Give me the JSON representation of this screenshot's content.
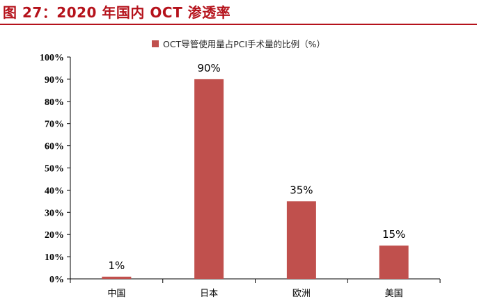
{
  "figure": {
    "title": "图 27：2020 年国内 OCT 渗透率"
  },
  "colors": {
    "title": "#b5121b",
    "bar": "#c0504d"
  },
  "chart_data": {
    "type": "bar",
    "categories": [
      "中国",
      "日本",
      "欧洲",
      "美国"
    ],
    "series": [
      {
        "name": "OCT导管使用量占PCI手术量的比例（%）",
        "values": [
          1,
          90,
          35,
          15
        ],
        "data_labels": [
          "1%",
          "90%",
          "35%",
          "15%"
        ]
      }
    ],
    "ylim": [
      0,
      100
    ],
    "yticks": [
      0,
      10,
      20,
      30,
      40,
      50,
      60,
      70,
      80,
      90,
      100
    ],
    "ytick_labels": [
      "0%",
      "10%",
      "20%",
      "30%",
      "40%",
      "50%",
      "60%",
      "70%",
      "80%",
      "90%",
      "100%"
    ],
    "legend_position": "top",
    "grid": false
  }
}
